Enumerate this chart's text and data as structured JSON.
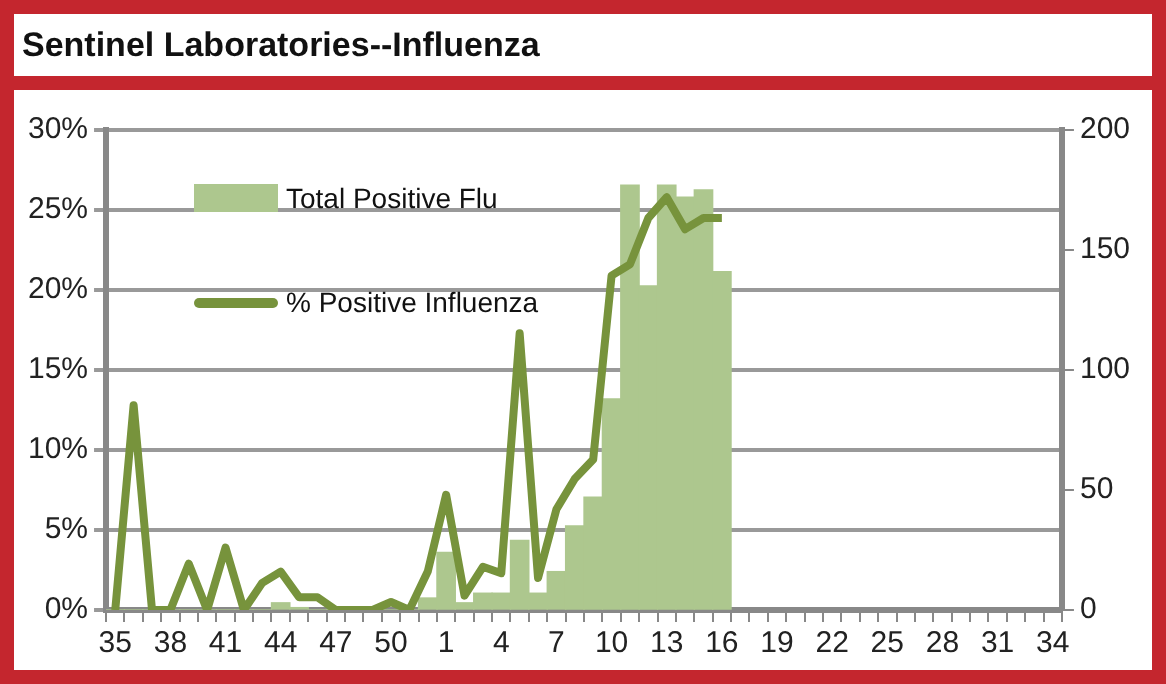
{
  "chart_data": {
    "type": "bar",
    "title": "Sentinel Laboratories--Influenza",
    "categories": [
      "35",
      null,
      null,
      "38",
      null,
      null,
      "41",
      null,
      null,
      "44",
      null,
      null,
      "47",
      null,
      null,
      "50",
      null,
      null,
      "1",
      null,
      null,
      "4",
      null,
      null,
      "7",
      null,
      null,
      "10",
      null,
      null,
      "13",
      null,
      null,
      "16",
      null,
      null,
      "19",
      null,
      null,
      "22",
      null,
      null,
      "25",
      null,
      null,
      "28",
      null,
      null,
      "31",
      null,
      null,
      "34"
    ],
    "series": [
      {
        "name": "Total Positive Flu",
        "axis": "y2",
        "color": "#adc78e",
        "values": [
          0,
          0,
          0,
          0,
          0,
          0,
          0,
          0,
          0,
          3,
          1,
          0,
          0,
          0,
          0,
          0,
          0,
          5,
          24,
          3,
          7,
          7,
          29,
          7,
          16,
          35,
          47,
          88,
          177,
          135,
          177,
          172,
          175,
          141,
          null,
          null,
          null,
          null,
          null,
          null,
          null,
          null,
          null,
          null,
          null,
          null,
          null,
          null,
          null,
          null,
          null,
          null
        ]
      },
      {
        "name": "% Positive Influenza",
        "type": "line",
        "color": "#77933c",
        "values": [
          0,
          12.8,
          0,
          0,
          2.9,
          0,
          3.9,
          0,
          1.7,
          2.4,
          0.8,
          0.8,
          0,
          0,
          0,
          0.5,
          0,
          2.4,
          7.2,
          0.9,
          2.7,
          2.3,
          17.3,
          2,
          6.3,
          8.2,
          9.4,
          20.9,
          21.6,
          24.5,
          25.8,
          23.8,
          24.5,
          24.5,
          null,
          null,
          null,
          null,
          null,
          null,
          null,
          null,
          null,
          null,
          null,
          null,
          null,
          null,
          null,
          null,
          null,
          null
        ]
      }
    ],
    "ylim": [
      0,
      30
    ],
    "yticks": [
      {
        "value": 0,
        "label": "0%"
      },
      {
        "value": 5,
        "label": "5%"
      },
      {
        "value": 10,
        "label": "10%"
      },
      {
        "value": 15,
        "label": "15%"
      },
      {
        "value": 20,
        "label": "20%"
      },
      {
        "value": 25,
        "label": "25%"
      },
      {
        "value": 30,
        "label": "30%"
      }
    ],
    "y2lim": [
      0,
      200
    ],
    "y2ticks": [
      0,
      50,
      100,
      150,
      200
    ],
    "grid": "y",
    "legend": "top left",
    "marker": "none",
    "line_style": "solid"
  }
}
